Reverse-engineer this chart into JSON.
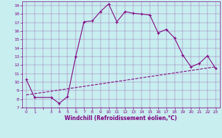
{
  "xlabel": "Windchill (Refroidissement éolien,°C)",
  "bg_color": "#c8eef0",
  "line_color": "#800080",
  "ylim": [
    7,
    19.5
  ],
  "xlim": [
    -0.5,
    23.5
  ],
  "yticks": [
    7,
    8,
    9,
    10,
    11,
    12,
    13,
    14,
    15,
    16,
    17,
    18,
    19
  ],
  "xtick_labels": [
    "0",
    "1",
    "",
    "3",
    "4",
    "5",
    "6",
    "7",
    "8",
    "9",
    "10",
    "11",
    "12",
    "13",
    "14",
    "15",
    "16",
    "17",
    "18",
    "19",
    "20",
    "21",
    "2223"
  ],
  "main_x": [
    0,
    1,
    3,
    4,
    5,
    6,
    7,
    8,
    9,
    10,
    11,
    12,
    13,
    14,
    15,
    16,
    17,
    18,
    19,
    20,
    21,
    22,
    23
  ],
  "main_y": [
    10.3,
    8.2,
    8.2,
    7.5,
    8.3,
    13.0,
    17.1,
    17.2,
    18.3,
    19.2,
    17.1,
    18.3,
    18.1,
    18.0,
    17.9,
    15.8,
    16.2,
    15.2,
    13.2,
    11.8,
    12.2,
    13.1,
    11.6
  ],
  "trend_x": [
    0,
    23
  ],
  "trend_y": [
    8.5,
    11.8
  ]
}
